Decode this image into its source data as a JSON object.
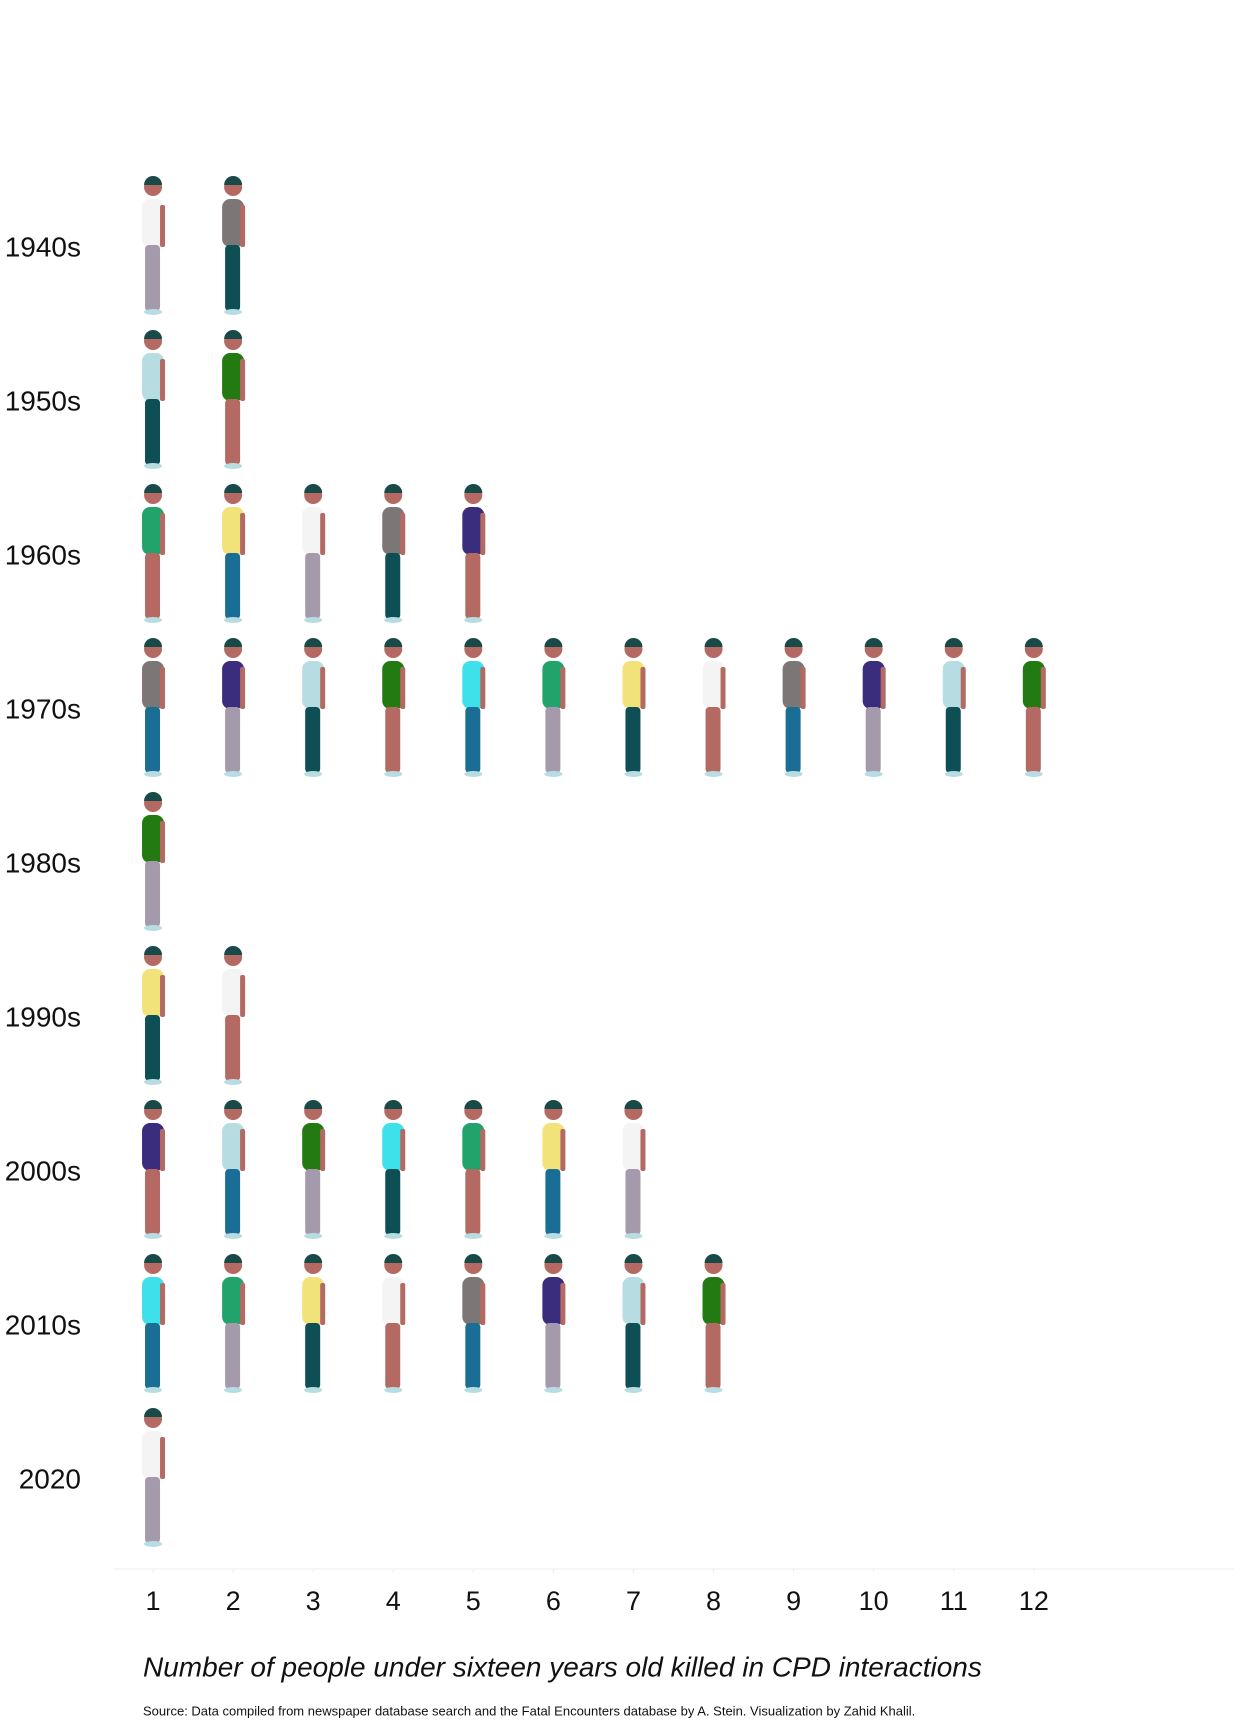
{
  "chart_data": {
    "type": "pictogram",
    "categories": [
      "1940s",
      "1950s",
      "1960s",
      "1970s",
      "1980s",
      "1990s",
      "2000s",
      "2010s",
      "2020"
    ],
    "values": [
      2,
      2,
      5,
      12,
      1,
      2,
      7,
      8,
      1
    ],
    "xlim": [
      0.5,
      14.5
    ],
    "xticks": [
      1,
      2,
      3,
      4,
      5,
      6,
      7,
      8,
      9,
      10,
      11,
      12
    ],
    "x_label": "Number of people under sixteen years old killed in CPD interactions",
    "source": "Source: Data compiled from newspaper database search and the Fatal Encounters database by A. Stein. Visualization by Zahid Khalil.",
    "colors": [
      "#f2e27a",
      "#f4f4f4",
      "#7d7676",
      "#3b2d7e",
      "#b7dde3",
      "#237a12",
      "#3ee0ea",
      "#22a36b"
    ]
  }
}
